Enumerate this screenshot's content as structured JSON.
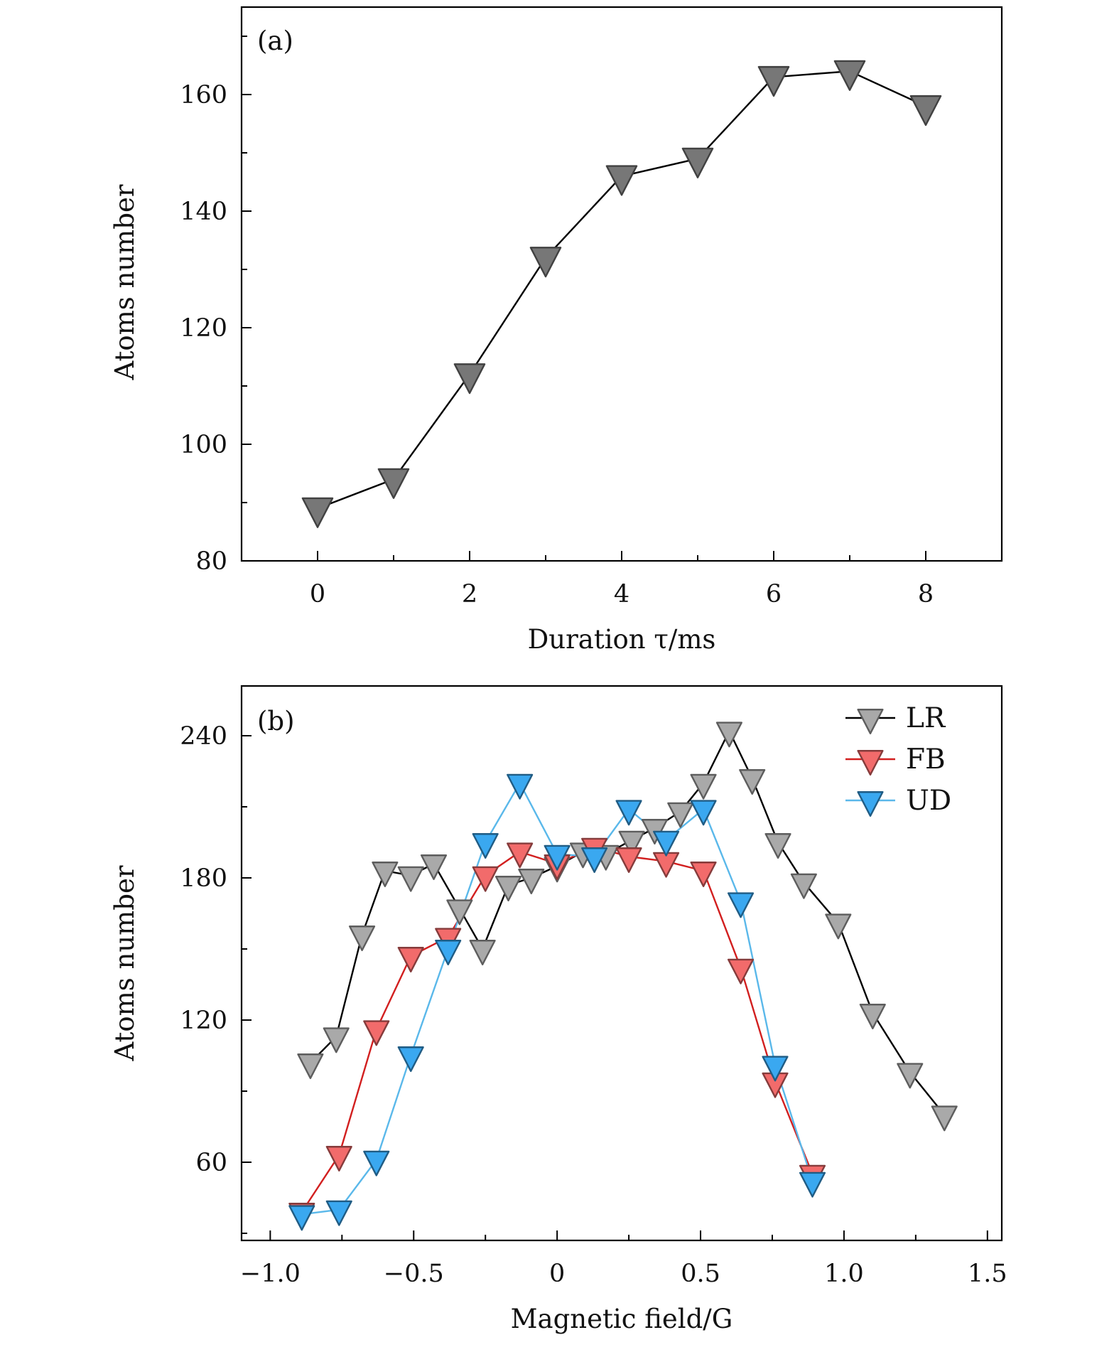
{
  "chart_data": [
    {
      "type": "line",
      "panel_label": "(a)",
      "xlabel": "Duration τ/ms",
      "ylabel": "Atoms number",
      "xlim": [
        -1,
        9
      ],
      "ylim": [
        80,
        175
      ],
      "x_ticks": [
        0,
        2,
        4,
        6,
        8
      ],
      "x_tick_labels": [
        "0",
        "2",
        "4",
        "6",
        "8"
      ],
      "y_ticks": [
        80,
        100,
        120,
        140,
        160
      ],
      "y_tick_labels": [
        "80",
        "100",
        "120",
        "140",
        "160"
      ],
      "grid": false,
      "series": [
        {
          "color": "#777777",
          "line_color": "#000000",
          "marker": "down-triangle",
          "x": [
            0,
            1,
            2,
            3,
            4,
            5,
            6,
            7,
            8
          ],
          "y": [
            89,
            94,
            112,
            132,
            146,
            149,
            163,
            164,
            158
          ]
        }
      ]
    },
    {
      "type": "line",
      "panel_label": "(b)",
      "xlabel": "Magnetic field/G",
      "ylabel": "Atoms number",
      "xlim": [
        -1.1,
        1.55
      ],
      "ylim": [
        27,
        261
      ],
      "x_ticks": [
        -1.0,
        -0.5,
        0,
        0.5,
        1.0,
        1.5
      ],
      "x_tick_labels": [
        "−1.0",
        "−0.5",
        "0",
        "0.5",
        "1.0",
        "1.5"
      ],
      "y_ticks": [
        60,
        120,
        180,
        240
      ],
      "y_tick_labels": [
        "60",
        "120",
        "180",
        "240"
      ],
      "grid": false,
      "legend_position": "top-right",
      "series": [
        {
          "name": "LR",
          "color": "#a9a9a9",
          "line_color": "#000000",
          "marker": "down-triangle",
          "x": [
            -0.86,
            -0.77,
            -0.68,
            -0.6,
            -0.51,
            -0.43,
            -0.34,
            -0.26,
            -0.17,
            -0.09,
            0.0,
            0.09,
            0.17,
            0.26,
            0.34,
            0.43,
            0.51,
            0.6,
            0.68,
            0.77,
            0.86,
            0.98,
            1.1,
            1.23,
            1.35
          ],
          "y": [
            102,
            113,
            156,
            183,
            181,
            186,
            167,
            150,
            177,
            180,
            185,
            191,
            190,
            196,
            201,
            208,
            220,
            242,
            222,
            195,
            178,
            161,
            123,
            98,
            80
          ]
        },
        {
          "name": "FB",
          "color": "#f26b6b",
          "line_color": "#d21f1f",
          "marker": "down-triangle",
          "x": [
            -0.89,
            -0.76,
            -0.63,
            -0.51,
            -0.38,
            -0.25,
            -0.13,
            0.0,
            0.13,
            0.25,
            0.38,
            0.51,
            0.64,
            0.76,
            0.89
          ],
          "y": [
            39,
            63,
            116,
            147,
            155,
            181,
            191,
            186,
            193,
            189,
            187,
            183,
            142,
            94,
            55
          ]
        },
        {
          "name": "UD",
          "color": "#3aa8f0",
          "line_color": "#5ab8ea",
          "marker": "down-triangle",
          "x": [
            -0.89,
            -0.76,
            -0.63,
            -0.51,
            -0.38,
            -0.25,
            -0.13,
            0.0,
            0.13,
            0.25,
            0.38,
            0.51,
            0.64,
            0.76,
            0.89
          ],
          "y": [
            38,
            40,
            61,
            105,
            150,
            195,
            220,
            190,
            189,
            209,
            196,
            209,
            170,
            101,
            52
          ]
        }
      ]
    }
  ]
}
